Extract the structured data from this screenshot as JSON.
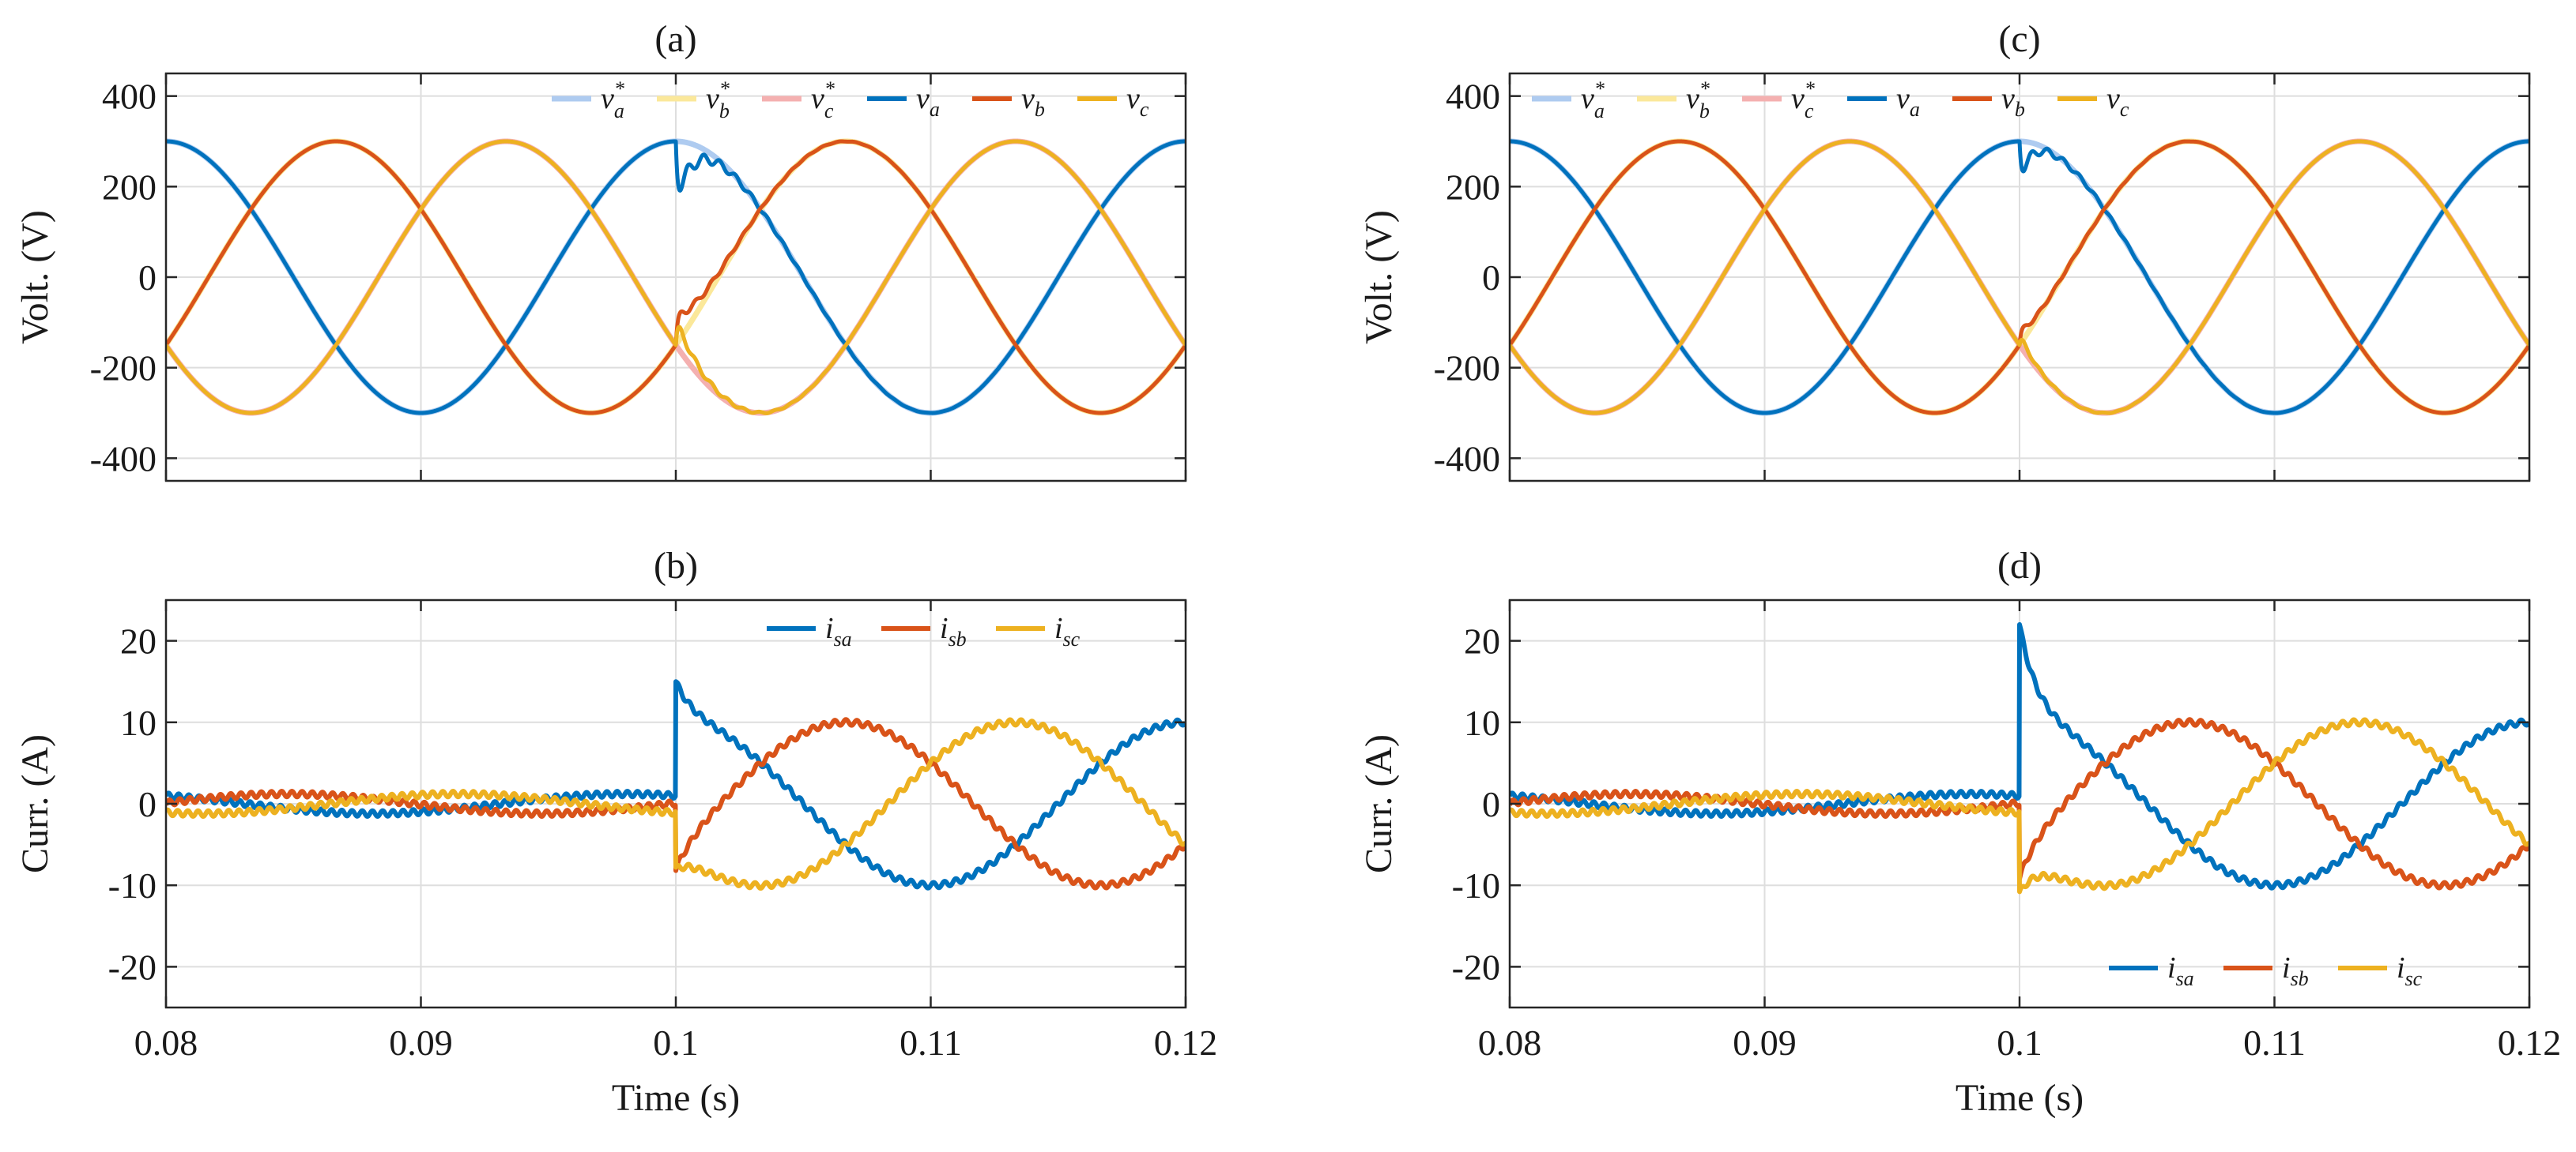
{
  "figure": {
    "colors": {
      "va_ref": "#aecbf0",
      "vb_ref": "#fbe89a",
      "vc_ref": "#f4b0b0",
      "blue": "#0072bd",
      "orange": "#d95319",
      "yellow": "#edb120",
      "grid": "#dedede",
      "axis": "#262626"
    }
  },
  "chart_data": [
    {
      "id": "a",
      "type": "line",
      "title": "(a)",
      "xlabel": "",
      "ylabel": "Volt. (V)",
      "xlim": [
        0.08,
        0.12
      ],
      "ylim": [
        -450,
        450
      ],
      "xticks": [
        0.08,
        0.09,
        0.1,
        0.11,
        0.12
      ],
      "xtick_labels": [
        "",
        "",
        "",
        "",
        ""
      ],
      "yticks": [
        -400,
        -200,
        0,
        200,
        400
      ],
      "ytick_labels": [
        "-400",
        "-200",
        "0",
        "200",
        "400"
      ],
      "grid": true,
      "legend": {
        "position": "top-right",
        "columns": 6
      },
      "series": [
        {
          "name": "v_a*",
          "base": "v",
          "sub": "a",
          "star": true,
          "color_key": "va_ref",
          "kind": "voltage_ref",
          "amplitude": 300,
          "frequency": 50,
          "phase_deg": 0
        },
        {
          "name": "v_b*",
          "base": "v",
          "sub": "b",
          "star": true,
          "color_key": "vb_ref",
          "kind": "voltage_ref",
          "amplitude": 300,
          "frequency": 50,
          "phase_deg": -120
        },
        {
          "name": "v_c*",
          "base": "v",
          "sub": "c",
          "star": true,
          "color_key": "vc_ref",
          "kind": "voltage_ref",
          "amplitude": 300,
          "frequency": 50,
          "phase_deg": 120
        },
        {
          "name": "v_a",
          "base": "v",
          "sub": "a",
          "star": false,
          "color_key": "blue",
          "kind": "voltage",
          "amplitude": 300,
          "frequency": 50,
          "phase_deg": 0,
          "disturbance": {
            "t": 0.1,
            "dip": -140,
            "tau": 0.0006
          }
        },
        {
          "name": "v_b",
          "base": "v",
          "sub": "b",
          "star": false,
          "color_key": "orange",
          "kind": "voltage",
          "amplitude": 300,
          "frequency": 50,
          "phase_deg": -120,
          "disturbance": {
            "t": 0.1,
            "dip": 70,
            "tau": 0.0008
          }
        },
        {
          "name": "v_c",
          "base": "v",
          "sub": "c",
          "star": false,
          "color_key": "yellow",
          "kind": "voltage",
          "amplitude": 300,
          "frequency": 50,
          "phase_deg": 120,
          "disturbance": {
            "t": 0.1,
            "dip": 65,
            "tau": 0.0007
          }
        }
      ]
    },
    {
      "id": "b",
      "type": "line",
      "title": "(b)",
      "xlabel": "Time (s)",
      "ylabel": "Curr. (A)",
      "xlim": [
        0.08,
        0.12
      ],
      "ylim": [
        -25,
        25
      ],
      "xticks": [
        0.08,
        0.09,
        0.1,
        0.11,
        0.12
      ],
      "xtick_labels": [
        "0.08",
        "0.09",
        "0.1",
        "0.11",
        "0.12"
      ],
      "yticks": [
        -20,
        -10,
        0,
        10,
        20
      ],
      "ytick_labels": [
        "-20",
        "-10",
        "0",
        "10",
        "20"
      ],
      "grid": true,
      "legend": {
        "position": "top-right",
        "columns": 3
      },
      "series": [
        {
          "name": "i_sa",
          "base": "i",
          "sub": "sa",
          "star": false,
          "color_key": "blue",
          "kind": "current",
          "pre_amplitude": 1.2,
          "post_amplitude": 10,
          "frequency": 50,
          "phase_deg": 0,
          "step_time": 0.1,
          "spike": 5
        },
        {
          "name": "i_sb",
          "base": "i",
          "sub": "sb",
          "star": false,
          "color_key": "orange",
          "kind": "current",
          "pre_amplitude": 1.2,
          "post_amplitude": 10,
          "frequency": 50,
          "phase_deg": -120,
          "step_time": 0.1,
          "spike": -3
        },
        {
          "name": "i_sc",
          "base": "i",
          "sub": "sc",
          "star": false,
          "color_key": "yellow",
          "kind": "current",
          "pre_amplitude": 1.2,
          "post_amplitude": 10,
          "frequency": 50,
          "phase_deg": 120,
          "step_time": 0.1,
          "spike": -3
        }
      ]
    },
    {
      "id": "c",
      "type": "line",
      "title": "(c)",
      "xlabel": "",
      "ylabel": "Volt. (V)",
      "xlim": [
        0.08,
        0.12
      ],
      "ylim": [
        -450,
        450
      ],
      "xticks": [
        0.08,
        0.09,
        0.1,
        0.11,
        0.12
      ],
      "xtick_labels": [
        "",
        "",
        "",
        "",
        ""
      ],
      "yticks": [
        -400,
        -200,
        0,
        200,
        400
      ],
      "ytick_labels": [
        "-400",
        "-200",
        "0",
        "200",
        "400"
      ],
      "grid": true,
      "legend": {
        "position": "top-left",
        "columns": 6
      },
      "series": [
        {
          "name": "v_a*",
          "base": "v",
          "sub": "a",
          "star": true,
          "color_key": "va_ref",
          "kind": "voltage_ref",
          "amplitude": 300,
          "frequency": 50,
          "phase_deg": 0
        },
        {
          "name": "v_b*",
          "base": "v",
          "sub": "b",
          "star": true,
          "color_key": "vb_ref",
          "kind": "voltage_ref",
          "amplitude": 300,
          "frequency": 50,
          "phase_deg": -120
        },
        {
          "name": "v_c*",
          "base": "v",
          "sub": "c",
          "star": true,
          "color_key": "vc_ref",
          "kind": "voltage_ref",
          "amplitude": 300,
          "frequency": 50,
          "phase_deg": 120
        },
        {
          "name": "v_a",
          "base": "v",
          "sub": "a",
          "star": false,
          "color_key": "blue",
          "kind": "voltage",
          "amplitude": 300,
          "frequency": 50,
          "phase_deg": 0,
          "disturbance": {
            "t": 0.1,
            "dip": -95,
            "tau": 0.0004
          }
        },
        {
          "name": "v_b",
          "base": "v",
          "sub": "b",
          "star": false,
          "color_key": "orange",
          "kind": "voltage",
          "amplitude": 300,
          "frequency": 50,
          "phase_deg": -120,
          "disturbance": {
            "t": 0.1,
            "dip": 40,
            "tau": 0.0004
          }
        },
        {
          "name": "v_c",
          "base": "v",
          "sub": "c",
          "star": false,
          "color_key": "yellow",
          "kind": "voltage",
          "amplitude": 300,
          "frequency": 50,
          "phase_deg": 120,
          "disturbance": {
            "t": 0.1,
            "dip": 30,
            "tau": 0.0004
          }
        }
      ]
    },
    {
      "id": "d",
      "type": "line",
      "title": "(d)",
      "xlabel": "Time (s)",
      "ylabel": "Curr. (A)",
      "xlim": [
        0.08,
        0.12
      ],
      "ylim": [
        -25,
        25
      ],
      "xticks": [
        0.08,
        0.09,
        0.1,
        0.11,
        0.12
      ],
      "xtick_labels": [
        "0.08",
        "0.09",
        "0.1",
        "0.11",
        "0.12"
      ],
      "yticks": [
        -20,
        -10,
        0,
        10,
        20
      ],
      "ytick_labels": [
        "-20",
        "-10",
        "0",
        "10",
        "20"
      ],
      "grid": true,
      "legend": {
        "position": "bottom-right",
        "columns": 3
      },
      "series": [
        {
          "name": "i_sa",
          "base": "i",
          "sub": "sa",
          "star": false,
          "color_key": "blue",
          "kind": "current",
          "pre_amplitude": 1.2,
          "post_amplitude": 10,
          "frequency": 50,
          "phase_deg": 0,
          "step_time": 0.1,
          "spike": 12
        },
        {
          "name": "i_sb",
          "base": "i",
          "sub": "sb",
          "star": false,
          "color_key": "orange",
          "kind": "current",
          "pre_amplitude": 1.2,
          "post_amplitude": 10,
          "frequency": 50,
          "phase_deg": -120,
          "step_time": 0.1,
          "spike": -4
        },
        {
          "name": "i_sc",
          "base": "i",
          "sub": "sc",
          "star": false,
          "color_key": "yellow",
          "kind": "current",
          "pre_amplitude": 1.2,
          "post_amplitude": 10,
          "frequency": 50,
          "phase_deg": 120,
          "step_time": 0.1,
          "spike": -6
        }
      ]
    }
  ]
}
